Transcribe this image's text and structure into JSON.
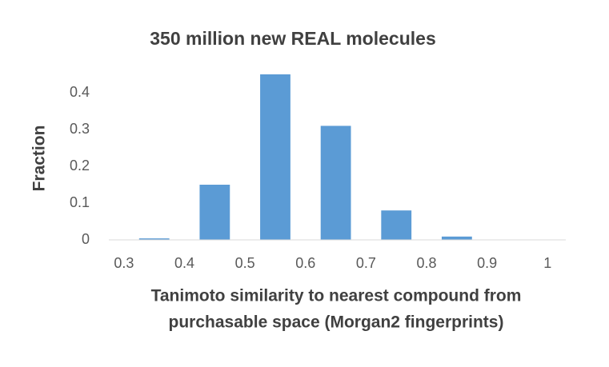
{
  "chart_data": {
    "type": "histogram",
    "title": "350 million new REAL molecules",
    "x_label": [
      "Tanimoto similarity to nearest compound from",
      "purchasable space (Morgan2 fingerprints)"
    ],
    "y_label": "Fraction",
    "bins": [
      0.3,
      0.4,
      0.5,
      0.6,
      0.7,
      0.8,
      0.9,
      1
    ],
    "values": [
      0.004,
      0.15,
      0.45,
      0.31,
      0.08,
      0.009,
      0
    ],
    "color": "#5b9bd5",
    "xlim": [
      0.275,
      1.03
    ],
    "xticks": [
      0.3,
      0.4,
      0.5,
      0.6,
      0.7,
      0.8,
      0.9,
      1
    ],
    "ylim": [
      0,
      0.45
    ],
    "yticks": [
      0,
      0.1,
      0.2,
      0.3,
      0.4
    ],
    "grid": false
  }
}
